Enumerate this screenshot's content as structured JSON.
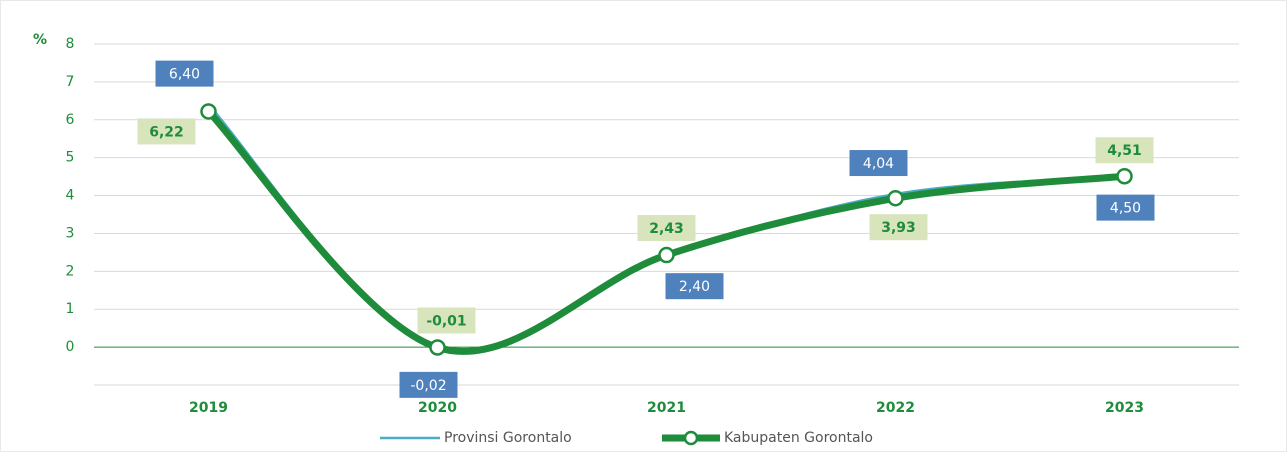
{
  "chart_data": {
    "type": "line",
    "y_axis_label": "%",
    "categories": [
      "2019",
      "2020",
      "2021",
      "2022",
      "2023"
    ],
    "series": [
      {
        "name": "Provinsi Gorontalo",
        "color": "#4bacc6",
        "values": [
          6.4,
          -0.02,
          2.4,
          4.04,
          4.5
        ],
        "value_labels": [
          "6,40",
          "-0,02",
          "2,40",
          "4,04",
          "4,50"
        ]
      },
      {
        "name": "Kabupaten Gorontalo",
        "color": "#1e8c3a",
        "values": [
          6.22,
          -0.01,
          2.43,
          3.93,
          4.51
        ],
        "value_labels": [
          "6,22",
          "-0,01",
          "2,43",
          "3,93",
          "4,51"
        ]
      }
    ],
    "ylim": [
      -1,
      8
    ],
    "yticks": [
      0,
      1,
      2,
      3,
      4,
      5,
      6,
      7,
      8
    ],
    "grid": true,
    "legend": "bottom"
  }
}
